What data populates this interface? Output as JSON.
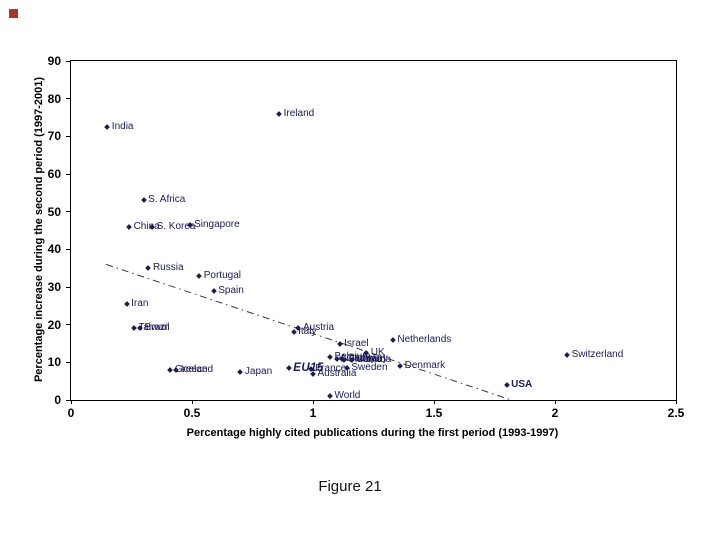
{
  "slide": {
    "caption": "Figure 21",
    "accent_color": "#a23b2e"
  },
  "chart_data": {
    "type": "scatter",
    "title": "",
    "xlabel": "Percentage highly cited publications during the first period (1993-1997)",
    "ylabel": "Percentage increase during the second period (1997-2001)",
    "xlim": [
      0,
      2.5
    ],
    "ylim": [
      0,
      90
    ],
    "xticks": [
      "0",
      "0.5",
      "1",
      "1.5",
      "2",
      "2.5"
    ],
    "yticks": [
      "0",
      "10",
      "20",
      "30",
      "40",
      "50",
      "60",
      "70",
      "80",
      "90"
    ],
    "grid": false,
    "legend_position": "none",
    "marker_color": "#1b1b55",
    "label_color": "#1b1b55",
    "axis_color": "#000000",
    "trendline": {
      "x1": 0.145,
      "y1": 36,
      "x2": 1.82,
      "y2": 0,
      "style": "dash-dot",
      "color": "#3a3a3a"
    },
    "points": [
      {
        "label": "India",
        "x": 0.15,
        "y": 72.5
      },
      {
        "label": "Ireland",
        "x": 0.86,
        "y": 76
      },
      {
        "label": "S. Africa",
        "x": 0.3,
        "y": 53
      },
      {
        "label": "China",
        "x": 0.24,
        "y": 46
      },
      {
        "label": "S. Korea",
        "x": 0.335,
        "y": 46
      },
      {
        "label": "Singapore",
        "x": 0.49,
        "y": 46.5
      },
      {
        "label": "Russia",
        "x": 0.32,
        "y": 35
      },
      {
        "label": "Portugal",
        "x": 0.53,
        "y": 33
      },
      {
        "label": "Spain",
        "x": 0.59,
        "y": 29
      },
      {
        "label": "Iran",
        "x": 0.23,
        "y": 25.5
      },
      {
        "label": "Taiwan",
        "x": 0.26,
        "y": 19
      },
      {
        "label": "Brazil",
        "x": 0.285,
        "y": 19
      },
      {
        "label": "Austria",
        "x": 0.94,
        "y": 19
      },
      {
        "label": "Italy",
        "x": 0.92,
        "y": 18
      },
      {
        "label": "Israel",
        "x": 1.11,
        "y": 15
      },
      {
        "label": "Netherlands",
        "x": 1.33,
        "y": 16
      },
      {
        "label": "UK",
        "x": 1.22,
        "y": 12.5
      },
      {
        "label": "Belgium",
        "x": 1.07,
        "y": 11.5
      },
      {
        "label": "Norway",
        "x": 1.1,
        "y": 11
      },
      {
        "label": "Germany",
        "x": 1.12,
        "y": 11
      },
      {
        "label": "Finland",
        "x": 1.13,
        "y": 10.5
      },
      {
        "label": "Canada",
        "x": 1.16,
        "y": 10.5
      },
      {
        "label": "Switzerland",
        "x": 2.05,
        "y": 12
      },
      {
        "label": "Greece",
        "x": 0.41,
        "y": 8
      },
      {
        "label": "Iceland",
        "x": 0.435,
        "y": 8
      },
      {
        "label": "Japan",
        "x": 0.7,
        "y": 7.5
      },
      {
        "label": "EU15",
        "x": 0.9,
        "y": 8.5,
        "cls": "eu15"
      },
      {
        "label": "France",
        "x": 0.99,
        "y": 8.3
      },
      {
        "label": "Sweden",
        "x": 1.14,
        "y": 8.5
      },
      {
        "label": "Denmark",
        "x": 1.36,
        "y": 9
      },
      {
        "label": "Australia",
        "x": 1.0,
        "y": 7
      },
      {
        "label": "USA",
        "x": 1.8,
        "y": 4,
        "cls": "bold"
      },
      {
        "label": "World",
        "x": 1.07,
        "y": 1
      }
    ]
  }
}
